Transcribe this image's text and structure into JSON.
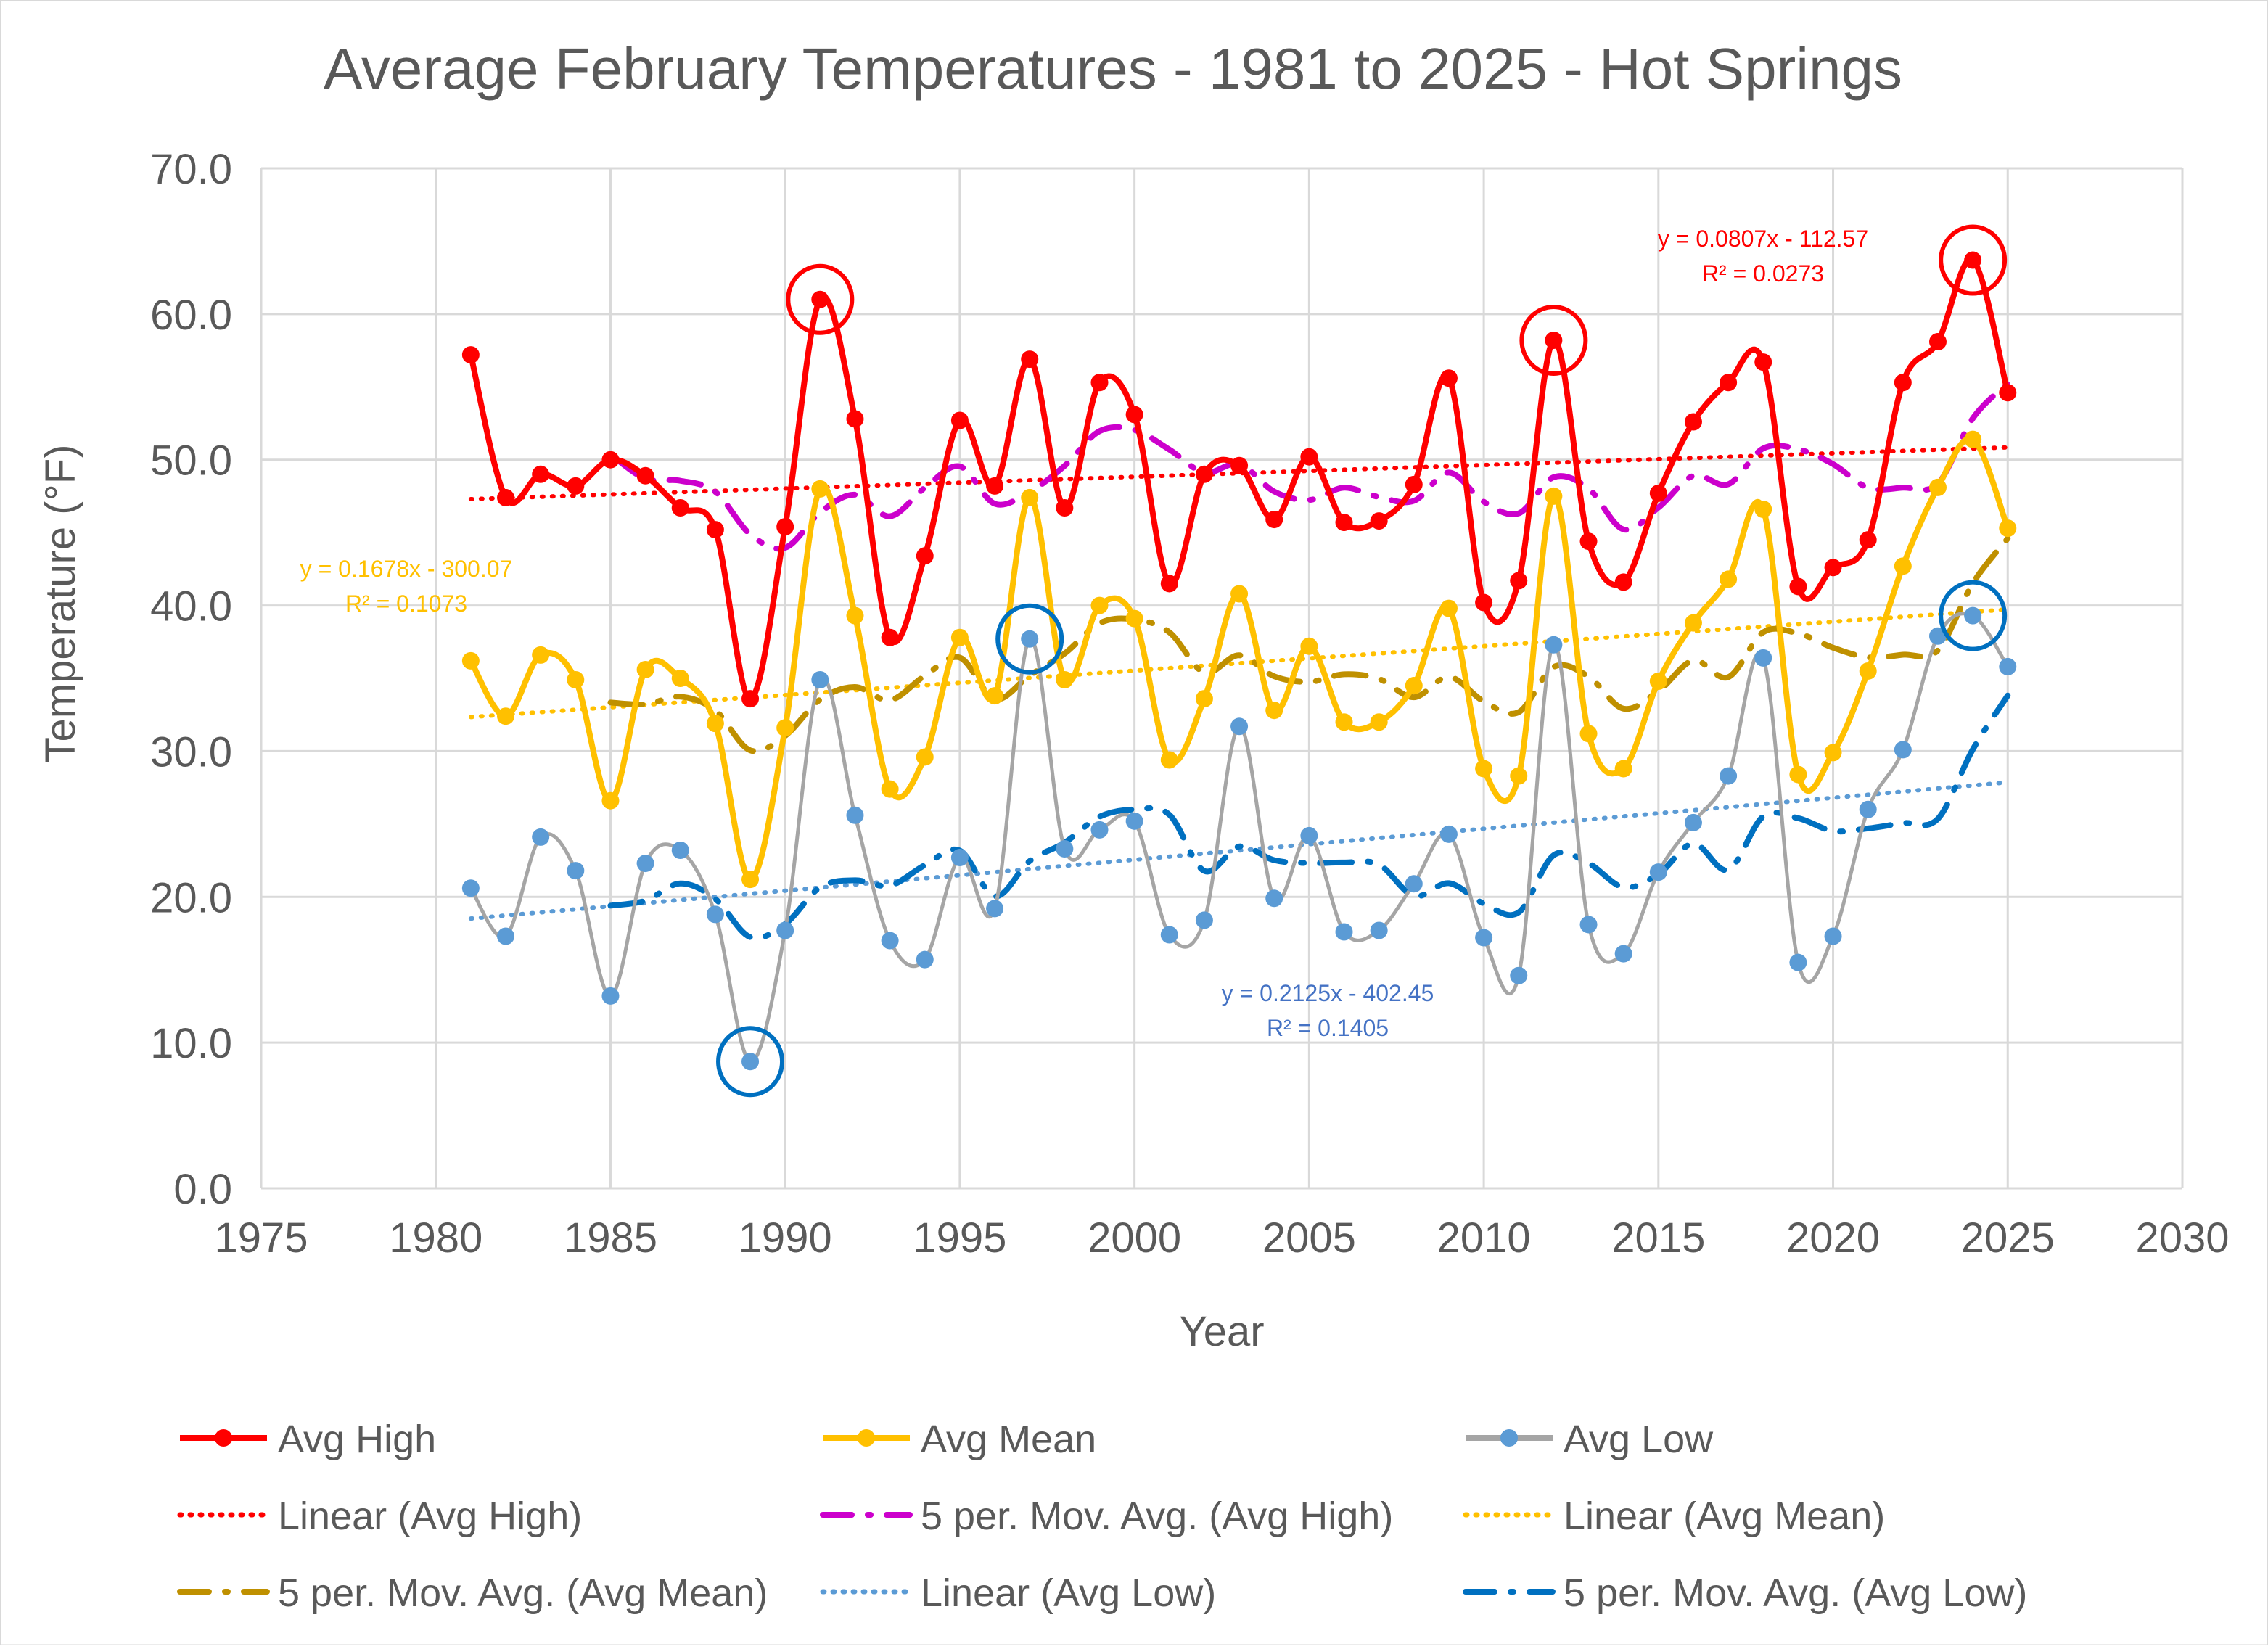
{
  "chart_data": {
    "type": "line",
    "title": "Average February Temperatures - 1981 to 2025 - Hot Springs",
    "xlabel": "Year",
    "ylabel": "Temperature (°F)",
    "xlim": [
      1975,
      2030
    ],
    "ylim": [
      0,
      70
    ],
    "x_ticks": [
      1975,
      1980,
      1985,
      1990,
      1995,
      2000,
      2005,
      2010,
      2015,
      2020,
      2025,
      2030
    ],
    "y_ticks": [
      0,
      10,
      20,
      30,
      40,
      50,
      60,
      70
    ],
    "y_tick_labels": [
      "0.0",
      "10.0",
      "20.0",
      "30.0",
      "40.0",
      "50.0",
      "60.0",
      "70.0"
    ],
    "grid": true,
    "legend_position": "bottom",
    "x": [
      1981,
      1982,
      1983,
      1984,
      1985,
      1986,
      1987,
      1988,
      1989,
      1990,
      1991,
      1992,
      1993,
      1994,
      1995,
      1996,
      1997,
      1998,
      1999,
      2000,
      2001,
      2002,
      2003,
      2004,
      2005,
      2006,
      2007,
      2008,
      2009,
      2010,
      2011,
      2012,
      2013,
      2014,
      2015,
      2016,
      2017,
      2018,
      2019,
      2020,
      2021,
      2022,
      2023,
      2024,
      2025
    ],
    "series": [
      {
        "name": "Avg High",
        "color": "#ff0000",
        "values": [
          57.2,
          47.4,
          49.0,
          48.2,
          50.0,
          48.9,
          46.7,
          45.2,
          33.6,
          45.4,
          61.0,
          52.8,
          37.8,
          43.4,
          52.7,
          48.2,
          56.9,
          46.7,
          55.3,
          53.1,
          41.5,
          49.0,
          49.6,
          45.9,
          50.2,
          45.7,
          45.8,
          48.3,
          55.6,
          40.2,
          41.7,
          58.2,
          44.4,
          41.6,
          47.7,
          52.6,
          55.3,
          56.7,
          41.3,
          42.6,
          44.5,
          55.3,
          58.1,
          63.7,
          54.6
        ]
      },
      {
        "name": "Avg Mean",
        "color": "#ffc000",
        "values": [
          36.2,
          32.4,
          36.6,
          34.9,
          26.6,
          35.6,
          35.0,
          31.9,
          21.2,
          31.6,
          48.0,
          39.3,
          27.4,
          29.6,
          37.8,
          33.8,
          47.4,
          34.9,
          40.0,
          39.1,
          29.4,
          33.6,
          40.8,
          32.8,
          37.2,
          32.0,
          32.0,
          34.5,
          39.8,
          28.8,
          28.3,
          47.5,
          31.2,
          28.8,
          34.8,
          38.8,
          41.8,
          46.6,
          28.4,
          29.9,
          35.5,
          42.7,
          48.1,
          51.4,
          45.3
        ]
      },
      {
        "name": "Avg Low",
        "color": "#5b9bd5",
        "values": [
          20.6,
          17.3,
          24.1,
          21.8,
          13.2,
          22.3,
          23.2,
          18.8,
          8.7,
          17.7,
          34.9,
          25.6,
          17.0,
          15.7,
          22.7,
          19.2,
          37.7,
          23.3,
          24.6,
          25.2,
          17.4,
          18.4,
          31.7,
          19.9,
          24.2,
          17.6,
          17.7,
          20.9,
          24.3,
          17.2,
          14.6,
          37.3,
          18.1,
          16.1,
          21.7,
          25.1,
          28.3,
          36.4,
          15.5,
          17.3,
          26.0,
          30.1,
          37.9,
          39.3,
          35.8
        ]
      }
    ],
    "trendlines": [
      {
        "name": "Linear (Avg High)",
        "type": "linear",
        "of": "Avg High",
        "slope": 0.0807,
        "intercept": -112.57,
        "r2": 0.0273,
        "color": "#ff0000"
      },
      {
        "name": "Linear (Avg Mean)",
        "type": "linear",
        "of": "Avg Mean",
        "slope": 0.1678,
        "intercept": -300.07,
        "r2": 0.1073,
        "color": "#ffc000"
      },
      {
        "name": "Linear (Avg Low)",
        "type": "linear",
        "of": "Avg Low",
        "slope": 0.2125,
        "intercept": -402.45,
        "r2": 0.1405,
        "color": "#5b9bd5"
      },
      {
        "name": "5 per. Mov. Avg. (Avg High)",
        "type": "moving_average",
        "period": 5,
        "of": "Avg High",
        "color": "#cc00cc"
      },
      {
        "name": "5 per. Mov. Avg. (Avg Mean)",
        "type": "moving_average",
        "period": 5,
        "of": "Avg Mean",
        "color": "#bf9000"
      },
      {
        "name": "5 per. Mov. Avg. (Avg Low)",
        "type": "moving_average",
        "period": 5,
        "of": "Avg Low",
        "color": "#0070c0"
      }
    ],
    "equations": {
      "high": {
        "eq": "y = 0.0807x - 112.57",
        "r2": "R² = 0.0273",
        "color": "#ff0000"
      },
      "mean": {
        "eq": "y = 0.1678x - 300.07",
        "r2": "R² = 0.1073",
        "color": "#ffc000"
      },
      "low": {
        "eq": "y = 0.2125x - 402.45",
        "r2": "R² = 0.1405",
        "color": "#4472c4"
      }
    },
    "highlights": [
      {
        "series": "Avg High",
        "year": 1991,
        "color": "#ff0000"
      },
      {
        "series": "Avg High",
        "year": 2012,
        "color": "#ff0000"
      },
      {
        "series": "Avg High",
        "year": 2024,
        "color": "#ff0000"
      },
      {
        "series": "Avg Low",
        "year": 1989,
        "color": "#0070c0"
      },
      {
        "series": "Avg Low",
        "year": 1997,
        "color": "#0070c0"
      },
      {
        "series": "Avg Low",
        "year": 2024,
        "color": "#0070c0"
      }
    ],
    "legend": [
      {
        "label": "Avg High",
        "style": "line-marker",
        "color": "#ff0000"
      },
      {
        "label": "Avg Mean",
        "style": "line-marker",
        "color": "#ffc000"
      },
      {
        "label": "Avg Low",
        "style": "line-marker",
        "color": "#a5a5a5",
        "marker_color": "#5b9bd5"
      },
      {
        "label": "Linear (Avg High)",
        "style": "dotted",
        "color": "#ff0000"
      },
      {
        "label": "5 per. Mov. Avg. (Avg High)",
        "style": "dashdot",
        "color": "#cc00cc"
      },
      {
        "label": "Linear (Avg Mean)",
        "style": "dotted",
        "color": "#ffc000"
      },
      {
        "label": "5 per. Mov. Avg. (Avg Mean)",
        "style": "dashdot",
        "color": "#bf9000"
      },
      {
        "label": "Linear (Avg Low)",
        "style": "dotted",
        "color": "#5b9bd5"
      },
      {
        "label": "5 per. Mov. Avg. (Avg Low)",
        "style": "dashdot",
        "color": "#0070c0"
      }
    ]
  }
}
